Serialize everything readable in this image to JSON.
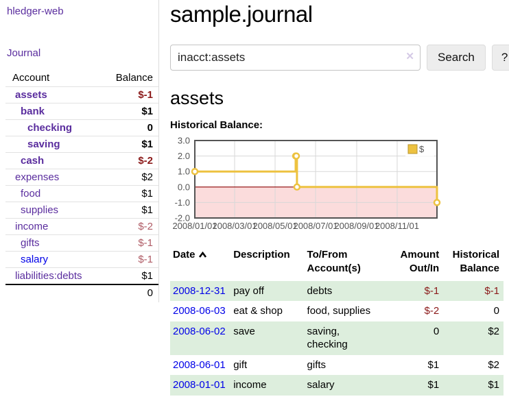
{
  "brand": "hledger-web",
  "nav": {
    "journal_label": "Journal"
  },
  "sidebar": {
    "headers": {
      "account": "Account",
      "balance": "Balance"
    },
    "rows": [
      {
        "name": "assets",
        "balance": "$-1",
        "depth": 1,
        "bold": true,
        "balance_class": "neg"
      },
      {
        "name": "bank",
        "balance": "$1",
        "depth": 2,
        "bold": true,
        "balance_class": ""
      },
      {
        "name": "checking",
        "balance": "0",
        "depth": 3,
        "bold": true,
        "balance_class": ""
      },
      {
        "name": "saving",
        "balance": "$1",
        "depth": 3,
        "bold": true,
        "balance_class": ""
      },
      {
        "name": "cash",
        "balance": "$-2",
        "depth": 2,
        "bold": true,
        "balance_class": "neg"
      },
      {
        "name": "expenses",
        "balance": "$2",
        "depth": 1,
        "bold": false,
        "balance_class": ""
      },
      {
        "name": "food",
        "balance": "$1",
        "depth": 2,
        "bold": false,
        "balance_class": ""
      },
      {
        "name": "supplies",
        "balance": "$1",
        "depth": 2,
        "bold": false,
        "balance_class": ""
      },
      {
        "name": "income",
        "balance": "$-2",
        "depth": 1,
        "bold": false,
        "balance_class": "rose"
      },
      {
        "name": "gifts",
        "balance": "$-1",
        "depth": 2,
        "bold": false,
        "balance_class": "rose"
      },
      {
        "name": "salary",
        "balance": "$-1",
        "depth": 2,
        "bold": false,
        "balance_class": "rose",
        "link_blue": true
      },
      {
        "name": "liabilities:debts",
        "balance": "$1",
        "depth": 1,
        "bold": false,
        "balance_class": ""
      }
    ],
    "total": "0"
  },
  "main": {
    "title": "sample.journal",
    "account_title": "assets",
    "chart_label": "Historical Balance:"
  },
  "search": {
    "value": "inacct:assets",
    "clear_icon": "✕",
    "submit_label": "Search",
    "help_label": "?"
  },
  "chart_data": {
    "type": "line",
    "step": true,
    "title": "Historical Balance:",
    "legend": {
      "label": "$",
      "position": "top-right"
    },
    "series": [
      {
        "name": "$",
        "color": "#edc240",
        "points": [
          [
            "2008-01-01",
            1
          ],
          [
            "2008-06-01",
            2
          ],
          [
            "2008-06-02",
            2
          ],
          [
            "2008-06-03",
            0
          ],
          [
            "2008-12-31",
            -1
          ]
        ]
      }
    ],
    "ylim": [
      -2,
      3
    ],
    "yticks": [
      3.0,
      2.0,
      1.0,
      0.0,
      -1.0,
      -2.0
    ],
    "xticks": [
      "2008/01/01",
      "2008/03/01",
      "2008/05/01",
      "2008/07/01",
      "2008/09/01",
      "2008/11/01"
    ],
    "xtick_dates": [
      "2008-01-01",
      "2008-03-01",
      "2008-05-01",
      "2008-07-01",
      "2008-09-01",
      "2008-11-01"
    ],
    "xrange": [
      "2008-01-01",
      "2008-12-31"
    ],
    "grid": true,
    "zero_line_color": "#8b0000",
    "negative_region_color": "#fbdcdc"
  },
  "transactions": {
    "headers": {
      "date": "Date",
      "description": "Description",
      "tofrom": "To/From Account(s)",
      "amount": "Amount Out/In",
      "balance": "Historical Balance"
    },
    "rows": [
      {
        "date": "2008-12-31",
        "description": "pay off",
        "accounts": "debts",
        "amount": "$-1",
        "balance": "$-1"
      },
      {
        "date": "2008-06-03",
        "description": "eat & shop",
        "accounts": "food, supplies",
        "amount": "$-2",
        "balance": "0"
      },
      {
        "date": "2008-06-02",
        "description": "save",
        "accounts": "saving,\nchecking",
        "amount": "0",
        "balance": "$2"
      },
      {
        "date": "2008-06-01",
        "description": "gift",
        "accounts": "gifts",
        "amount": "$1",
        "balance": "$2"
      },
      {
        "date": "2008-01-01",
        "description": "income",
        "accounts": "salary",
        "amount": "$1",
        "balance": "$1"
      }
    ]
  },
  "colors": {
    "accent_purple": "#5a2d9e",
    "link_blue": "#0000e8",
    "negative": "#8b1a1a",
    "negative_muted": "#b05c66",
    "row_green": "#ddeedd",
    "chart_gold": "#edc240",
    "chart_border": "#545454",
    "chart_zero_line": "#8b0000",
    "chart_negative_fill": "#fbdcdc"
  }
}
